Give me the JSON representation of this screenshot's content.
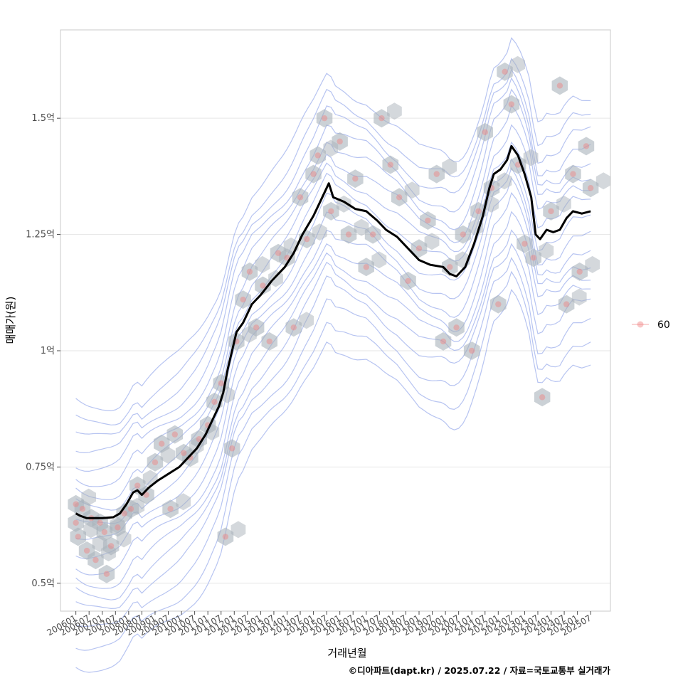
{
  "chart_data": {
    "type": "line",
    "title": "",
    "xlabel": "거래년월",
    "ylabel": "매매가(원)",
    "caption": "©디아파트(dapt.kr) / 2025.07.22 / 자료=국토교통부 실거래가",
    "legend": {
      "position": "right",
      "entries": [
        "60"
      ]
    },
    "grid": true,
    "y_unit": "억",
    "ylim": [
      0.44,
      1.69
    ],
    "xlim": [
      "2005-06",
      "2026-04"
    ],
    "y_ticks": [
      {
        "value": 0.5,
        "label": "0.5억"
      },
      {
        "value": 0.75,
        "label": "0.75억"
      },
      {
        "value": 1.0,
        "label": "1억"
      },
      {
        "value": 1.25,
        "label": "1.25억"
      },
      {
        "value": 1.5,
        "label": "1.5억"
      }
    ],
    "x_ticks": [
      "200601",
      "200607",
      "200701",
      "200707",
      "200801",
      "200807",
      "200901",
      "200907",
      "201001",
      "201007",
      "201101",
      "201107",
      "201201",
      "201207",
      "201301",
      "201307",
      "201401",
      "201407",
      "201501",
      "201507",
      "201601",
      "201607",
      "201701",
      "201707",
      "201801",
      "201807",
      "201901",
      "201907",
      "202001",
      "202007",
      "202101",
      "202107",
      "202201",
      "202207",
      "202301",
      "202307",
      "202401",
      "202407",
      "202501",
      "202507"
    ],
    "colors": {
      "trend": "#000000",
      "points": "#f08080",
      "hex": "#a9b2ba",
      "contour": "#7b93e6"
    },
    "series": [
      {
        "name": "",
        "kind": "trend-line",
        "points": [
          [
            "2006-01",
            0.65
          ],
          [
            "2006-03",
            0.645
          ],
          [
            "2006-06",
            0.64
          ],
          [
            "2007-01",
            0.64
          ],
          [
            "2007-06",
            0.642
          ],
          [
            "2007-09",
            0.65
          ],
          [
            "2007-12",
            0.67
          ],
          [
            "2008-03",
            0.695
          ],
          [
            "2008-05",
            0.7
          ],
          [
            "2008-07",
            0.69
          ],
          [
            "2008-10",
            0.705
          ],
          [
            "2009-02",
            0.72
          ],
          [
            "2009-07",
            0.735
          ],
          [
            "2009-12",
            0.75
          ],
          [
            "2010-04",
            0.77
          ],
          [
            "2010-08",
            0.79
          ],
          [
            "2010-12",
            0.82
          ],
          [
            "2011-03",
            0.85
          ],
          [
            "2011-06",
            0.88
          ],
          [
            "2011-08",
            0.91
          ],
          [
            "2011-10",
            0.96
          ],
          [
            "2011-12",
            1.0
          ],
          [
            "2012-02",
            1.04
          ],
          [
            "2012-05",
            1.06
          ],
          [
            "2012-09",
            1.1
          ],
          [
            "2013-01",
            1.12
          ],
          [
            "2013-06",
            1.15
          ],
          [
            "2013-12",
            1.18
          ],
          [
            "2014-04",
            1.21
          ],
          [
            "2014-08",
            1.25
          ],
          [
            "2015-01",
            1.29
          ],
          [
            "2015-04",
            1.32
          ],
          [
            "2015-08",
            1.36
          ],
          [
            "2015-10",
            1.33
          ],
          [
            "2016-03",
            1.32
          ],
          [
            "2016-08",
            1.305
          ],
          [
            "2017-01",
            1.3
          ],
          [
            "2017-06",
            1.28
          ],
          [
            "2017-10",
            1.26
          ],
          [
            "2018-03",
            1.245
          ],
          [
            "2018-08",
            1.22
          ],
          [
            "2019-01",
            1.195
          ],
          [
            "2019-06",
            1.185
          ],
          [
            "2019-12",
            1.18
          ],
          [
            "2020-03",
            1.165
          ],
          [
            "2020-06",
            1.16
          ],
          [
            "2020-10",
            1.18
          ],
          [
            "2021-02",
            1.23
          ],
          [
            "2021-06",
            1.29
          ],
          [
            "2021-09",
            1.35
          ],
          [
            "2021-11",
            1.38
          ],
          [
            "2022-02",
            1.39
          ],
          [
            "2022-05",
            1.41
          ],
          [
            "2022-07",
            1.44
          ],
          [
            "2022-10",
            1.42
          ],
          [
            "2023-01",
            1.38
          ],
          [
            "2023-04",
            1.33
          ],
          [
            "2023-06",
            1.25
          ],
          [
            "2023-08",
            1.24
          ],
          [
            "2023-11",
            1.26
          ],
          [
            "2024-02",
            1.255
          ],
          [
            "2024-05",
            1.26
          ],
          [
            "2024-08",
            1.285
          ],
          [
            "2024-11",
            1.3
          ],
          [
            "2025-03",
            1.295
          ],
          [
            "2025-07",
            1.3
          ]
        ]
      },
      {
        "name": "60",
        "kind": "transactions",
        "points": [
          [
            "2006-01",
            0.67
          ],
          [
            "2006-01",
            0.63
          ],
          [
            "2006-02",
            0.6
          ],
          [
            "2006-04",
            0.66
          ],
          [
            "2006-06",
            0.57
          ],
          [
            "2006-08",
            0.64
          ],
          [
            "2006-10",
            0.55
          ],
          [
            "2006-12",
            0.63
          ],
          [
            "2007-02",
            0.61
          ],
          [
            "2007-03",
            0.52
          ],
          [
            "2007-05",
            0.58
          ],
          [
            "2007-08",
            0.62
          ],
          [
            "2007-11",
            0.65
          ],
          [
            "2008-02",
            0.66
          ],
          [
            "2008-05",
            0.71
          ],
          [
            "2008-09",
            0.69
          ],
          [
            "2009-01",
            0.76
          ],
          [
            "2009-04",
            0.8
          ],
          [
            "2009-08",
            0.66
          ],
          [
            "2009-10",
            0.82
          ],
          [
            "2010-02",
            0.78
          ],
          [
            "2010-05",
            0.77
          ],
          [
            "2010-09",
            0.81
          ],
          [
            "2011-01",
            0.84
          ],
          [
            "2011-04",
            0.89
          ],
          [
            "2011-07",
            0.93
          ],
          [
            "2011-09",
            0.6
          ],
          [
            "2011-12",
            0.79
          ],
          [
            "2012-02",
            1.02
          ],
          [
            "2012-05",
            1.11
          ],
          [
            "2012-08",
            1.17
          ],
          [
            "2012-11",
            1.05
          ],
          [
            "2013-02",
            1.14
          ],
          [
            "2013-05",
            1.02
          ],
          [
            "2013-09",
            1.21
          ],
          [
            "2014-01",
            1.2
          ],
          [
            "2014-04",
            1.05
          ],
          [
            "2014-07",
            1.33
          ],
          [
            "2014-10",
            1.24
          ],
          [
            "2015-01",
            1.38
          ],
          [
            "2015-03",
            1.42
          ],
          [
            "2015-06",
            1.5
          ],
          [
            "2015-09",
            1.3
          ],
          [
            "2016-01",
            1.45
          ],
          [
            "2016-05",
            1.25
          ],
          [
            "2016-08",
            1.37
          ],
          [
            "2017-01",
            1.18
          ],
          [
            "2017-04",
            1.25
          ],
          [
            "2017-08",
            1.5
          ],
          [
            "2017-12",
            1.4
          ],
          [
            "2018-04",
            1.33
          ],
          [
            "2018-08",
            1.15
          ],
          [
            "2019-01",
            1.22
          ],
          [
            "2019-05",
            1.28
          ],
          [
            "2019-09",
            1.38
          ],
          [
            "2019-12",
            1.02
          ],
          [
            "2020-03",
            1.18
          ],
          [
            "2020-06",
            1.05
          ],
          [
            "2020-09",
            1.25
          ],
          [
            "2021-01",
            1.0
          ],
          [
            "2021-04",
            1.3
          ],
          [
            "2021-07",
            1.47
          ],
          [
            "2021-10",
            1.35
          ],
          [
            "2022-01",
            1.1
          ],
          [
            "2022-04",
            1.6
          ],
          [
            "2022-07",
            1.53
          ],
          [
            "2022-10",
            1.4
          ],
          [
            "2023-01",
            1.23
          ],
          [
            "2023-05",
            1.2
          ],
          [
            "2023-09",
            0.9
          ],
          [
            "2024-01",
            1.3
          ],
          [
            "2024-05",
            1.57
          ],
          [
            "2024-08",
            1.1
          ],
          [
            "2024-11",
            1.38
          ],
          [
            "2025-02",
            1.17
          ],
          [
            "2025-05",
            1.44
          ],
          [
            "2025-07",
            1.35
          ]
        ]
      }
    ]
  }
}
